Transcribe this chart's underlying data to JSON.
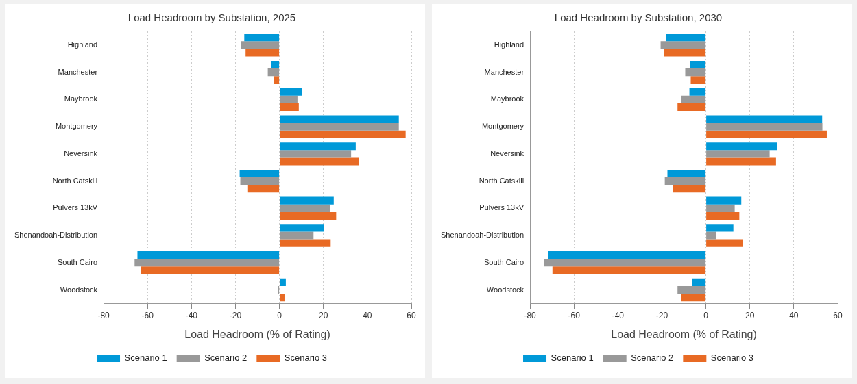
{
  "chart_data": [
    {
      "type": "bar",
      "orientation": "horizontal",
      "title": "Load Headroom by Substation, 2025",
      "xlabel": "Load Headroom (% of Rating)",
      "categories": [
        "Highland",
        "Manchester",
        "Maybrook",
        "Montgomery",
        "Neversink",
        "North Catskill",
        "Pulvers 13kV",
        "Shenandoah-Distribution",
        "South Cairo",
        "Woodstock"
      ],
      "series": [
        {
          "name": "Scenario 1",
          "color": "#0099d8",
          "values": [
            -16,
            -3.8,
            10.3,
            54.3,
            34.7,
            -18.1,
            24.7,
            20.1,
            -64.6,
            2.9
          ]
        },
        {
          "name": "Scenario 2",
          "color": "#999999",
          "values": [
            -17.5,
            -5.3,
            8.2,
            54.3,
            32.6,
            -17.8,
            22.9,
            15.5,
            -65.9,
            -0.8
          ]
        },
        {
          "name": "Scenario 3",
          "color": "#e86a24",
          "values": [
            -15.4,
            -2.4,
            8.8,
            57.4,
            36.2,
            -14.6,
            25.8,
            23.3,
            -63,
            2.3
          ]
        }
      ],
      "xlim": [
        -80,
        60
      ],
      "xticks": [
        -80,
        -60,
        -40,
        -20,
        0,
        20,
        40,
        60
      ],
      "grid": "x",
      "legend": "bottom"
    },
    {
      "type": "bar",
      "orientation": "horizontal",
      "title": "Load Headroom by Substation, 2030",
      "xlabel": "Load Headroom (% of Rating)",
      "categories": [
        "Highland",
        "Manchester",
        "Maybrook",
        "Montgomery",
        "Neversink",
        "North Catskill",
        "Pulvers 13kV",
        "Shenandoah-Distribution",
        "South Cairo",
        "Woodstock"
      ],
      "series": [
        {
          "name": "Scenario 1",
          "color": "#0099d8",
          "values": [
            -18.2,
            -7.2,
            -7.5,
            52.9,
            32.3,
            -17.5,
            16.1,
            12.5,
            -71.7,
            -6.2
          ]
        },
        {
          "name": "Scenario 2",
          "color": "#999999",
          "values": [
            -20.6,
            -9.4,
            -11.1,
            53,
            29,
            -18.7,
            13.1,
            4.8,
            -73.7,
            -12.9
          ]
        },
        {
          "name": "Scenario 3",
          "color": "#e86a24",
          "values": [
            -18.9,
            -6.9,
            -12.9,
            55,
            31.9,
            -15.1,
            15.2,
            16.8,
            -69.8,
            -11.3
          ]
        }
      ],
      "xlim": [
        -80,
        60
      ],
      "xticks": [
        -80,
        -60,
        -40,
        -20,
        0,
        20,
        40,
        60
      ],
      "grid": "x",
      "legend": "bottom"
    }
  ]
}
